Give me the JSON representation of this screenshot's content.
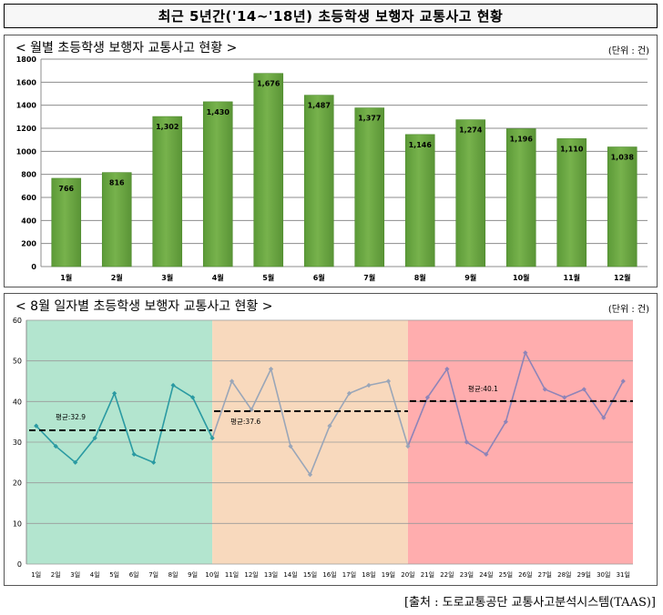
{
  "title": "최근 5년간('14~'18년) 초등학생 보행자 교통사고 현황",
  "source": "[출처 : 도로교통공단 교통사고분석시스템(TAAS)]",
  "chart_data": [
    {
      "type": "bar",
      "title": "< 월별 초등학생 보행자 교통사고 현황 >",
      "unit": "(단위 : 건)",
      "categories": [
        "1월",
        "2월",
        "3월",
        "4월",
        "5월",
        "6월",
        "7월",
        "8월",
        "9월",
        "10월",
        "11월",
        "12월"
      ],
      "values": [
        766,
        816,
        1302,
        1430,
        1676,
        1487,
        1377,
        1146,
        1274,
        1196,
        1110,
        1038
      ],
      "data_labels": [
        "766",
        "816",
        "1,302",
        "1,430",
        "1,676",
        "1,487",
        "1,377",
        "1,146",
        "1,274",
        "1,196",
        "1,110",
        "1,038"
      ],
      "ylim": [
        0,
        1800
      ],
      "yticks": [
        0,
        200,
        400,
        600,
        800,
        1000,
        1200,
        1400,
        1600,
        1800
      ],
      "grid": true,
      "bar_color": "#77b24c"
    },
    {
      "type": "line",
      "title": "< 8월 일자별 초등학생 보행자 교통사고 현황 >",
      "unit": "(단위 : 건)",
      "categories": [
        "1일",
        "2일",
        "3일",
        "4일",
        "5일",
        "6일",
        "7일",
        "8일",
        "9일",
        "10일",
        "11일",
        "12일",
        "13일",
        "14일",
        "15일",
        "16일",
        "17일",
        "18일",
        "19일",
        "20일",
        "21일",
        "22일",
        "23일",
        "24일",
        "25일",
        "26일",
        "27일",
        "28일",
        "29일",
        "30일",
        "31일"
      ],
      "series": [
        {
          "values": [
            34,
            29,
            25,
            31,
            42,
            27,
            25,
            44,
            41,
            31,
            45,
            38,
            48,
            29,
            22,
            34,
            42,
            44,
            45,
            29,
            41,
            48,
            30,
            27,
            35,
            52,
            43,
            41,
            43,
            36,
            45
          ]
        }
      ],
      "ylim": [
        0,
        60
      ],
      "yticks": [
        0,
        10,
        20,
        30,
        40,
        50,
        60
      ],
      "grid": true,
      "periods": [
        {
          "from": "1일",
          "to": "10일",
          "color": "#b3e5cf",
          "line_color": "#2a9aa2",
          "average": 32.9,
          "average_label": "평균:32.9"
        },
        {
          "from": "10일",
          "to": "20일",
          "color": "#f8d9bd",
          "line_color": "#9aa6b8",
          "average": 37.6,
          "average_label": "평균:37.6"
        },
        {
          "from": "20일",
          "to": "31일",
          "color": "#ffadae",
          "line_color": "#8e84b8",
          "average": 40.1,
          "average_label": "평균:40.1"
        }
      ]
    }
  ]
}
